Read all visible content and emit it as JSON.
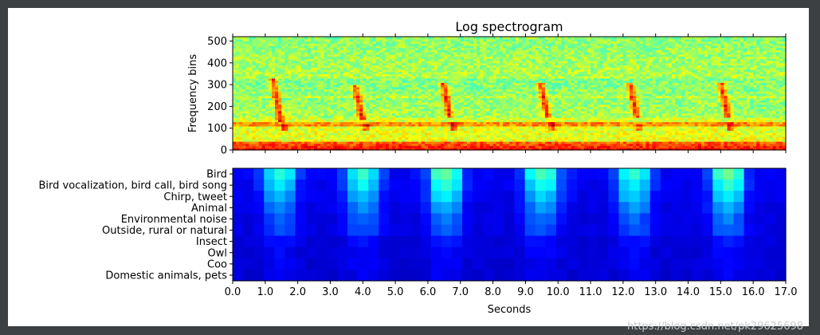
{
  "watermark": "https://blog.csdn.net/pk29625698",
  "chart_data": [
    {
      "type": "heatmap",
      "title": "Log spectrogram",
      "ylabel": "Frequency bins",
      "xlabel": "",
      "xlim": [
        0,
        17.0
      ],
      "ylim": [
        0,
        520
      ],
      "yticks": [
        0,
        100,
        200,
        300,
        400,
        500
      ],
      "background_band_centers": [
        120
      ],
      "calls": [
        {
          "t": 1.35,
          "f_top": 310,
          "f_bottom": 150,
          "tail_t": 1.58,
          "tail_f": 105
        },
        {
          "t": 3.85,
          "f_top": 290,
          "f_bottom": 150,
          "tail_t": 4.1,
          "tail_f": 105
        },
        {
          "t": 6.55,
          "f_top": 300,
          "f_bottom": 160,
          "tail_t": 6.8,
          "tail_f": 108
        },
        {
          "t": 9.55,
          "f_top": 300,
          "f_bottom": 160,
          "tail_t": 9.8,
          "tail_f": 110
        },
        {
          "t": 12.3,
          "f_top": 300,
          "f_bottom": 160,
          "tail_t": 12.5,
          "tail_f": 105
        },
        {
          "t": 15.1,
          "f_top": 300,
          "f_bottom": 160,
          "tail_t": 15.3,
          "tail_f": 110
        }
      ]
    },
    {
      "type": "heatmap",
      "title": "",
      "xlabel": "Seconds",
      "ylabel": "",
      "xlim": [
        0,
        17.0
      ],
      "xticks": [
        "0.0",
        "1.0",
        "2.0",
        "3.0",
        "4.0",
        "5.0",
        "6.0",
        "7.0",
        "8.0",
        "9.0",
        "10.0",
        "11.0",
        "12.0",
        "13.0",
        "14.0",
        "15.0",
        "16.0",
        "17.0"
      ],
      "categories": [
        "Bird",
        "Bird vocalization, bird call, bird song",
        "Chirp, tweet",
        "Animal",
        "Environmental noise",
        "Outside, rural or natural",
        "Insect",
        "Owl",
        "Coo",
        "Domestic animals, pets"
      ],
      "frames_per_second": 3.125,
      "activity_windows": [
        [
          1.0,
          1.9
        ],
        [
          3.5,
          4.5
        ],
        [
          6.0,
          7.0
        ],
        [
          9.0,
          10.1
        ],
        [
          11.8,
          12.8
        ],
        [
          14.7,
          15.7
        ]
      ],
      "category_strength": [
        0.92,
        0.78,
        0.65,
        0.5,
        0.38,
        0.33,
        0.16,
        0.12,
        0.1,
        0.08
      ],
      "window_strength": [
        0.72,
        0.75,
        0.9,
        0.82,
        0.78,
        0.92
      ]
    }
  ]
}
